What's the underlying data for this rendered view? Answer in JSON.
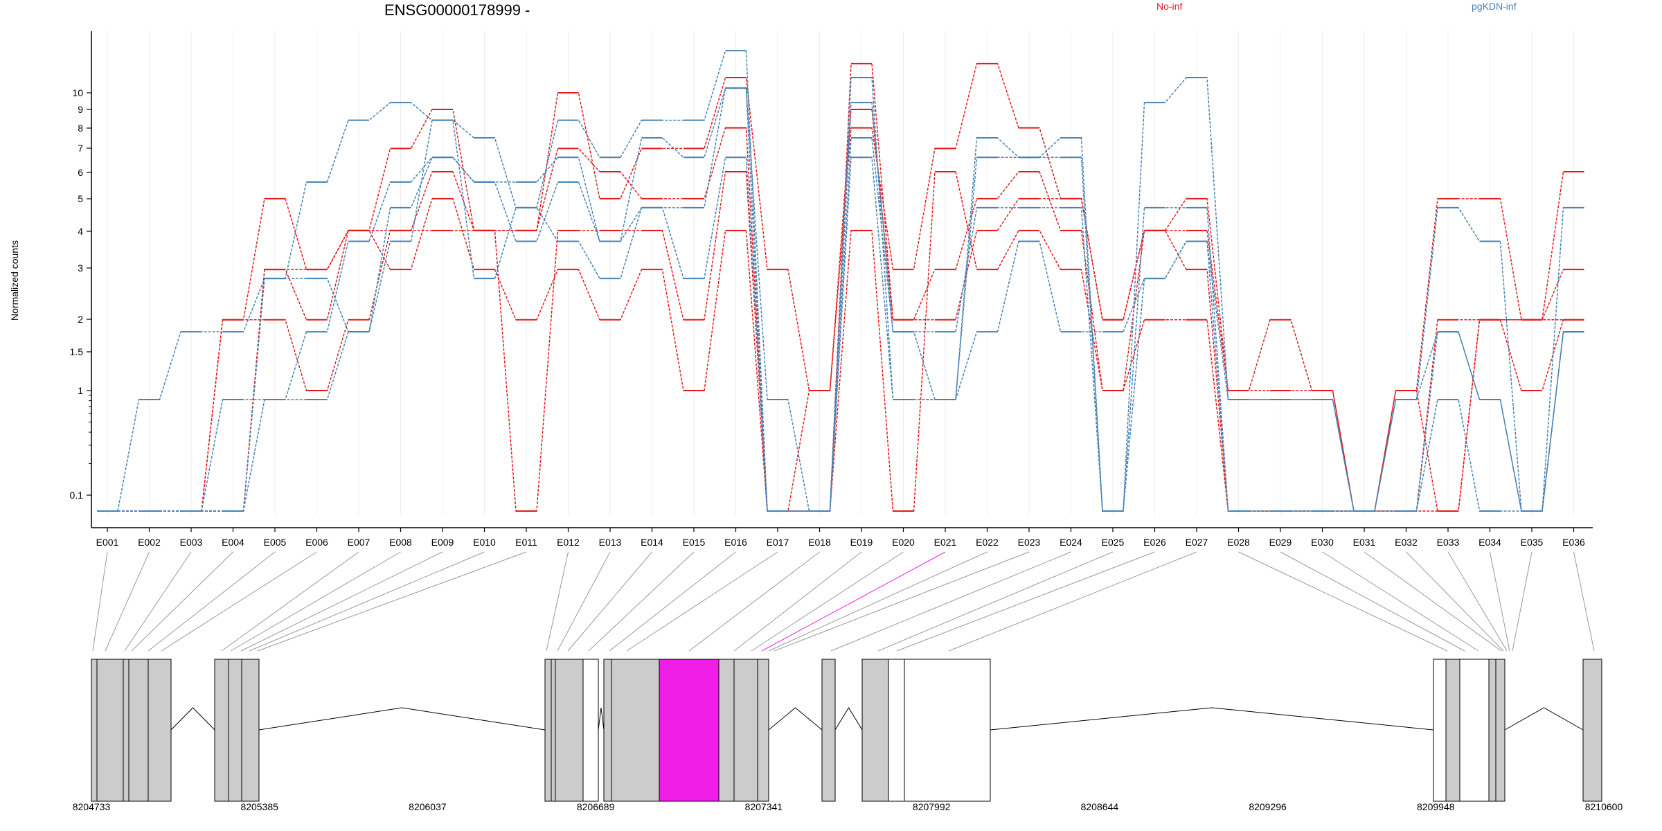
{
  "chart_data": {
    "type": "line",
    "title": "ENSG00000178999 -",
    "ylabel": "Normalized counts",
    "y_scale": "log (offset 0.1 floor)",
    "y_ticks": [
      "0.1",
      "1",
      "1.5",
      "2",
      "3",
      "4",
      "5",
      "6",
      "7",
      "8",
      "9",
      "10"
    ],
    "y_tick_values": [
      0.1,
      1,
      1.5,
      2,
      3,
      4,
      5,
      6,
      7,
      8,
      9,
      10
    ],
    "categories": [
      "E001",
      "E002",
      "E003",
      "E004",
      "E005",
      "E006",
      "E007",
      "E008",
      "E009",
      "E010",
      "E011",
      "E012",
      "E013",
      "E014",
      "E015",
      "E016",
      "E017",
      "E018",
      "E019",
      "E020",
      "E021",
      "E022",
      "E023",
      "E024",
      "E025",
      "E026",
      "E027",
      "E028",
      "E029",
      "E030",
      "E031",
      "E032",
      "E033",
      "E034",
      "E035",
      "E036"
    ],
    "legend": [
      {
        "label": "No-inf",
        "color": "#e41a1c"
      },
      {
        "label": "pgKDN-inf",
        "color": "#4682b4"
      }
    ],
    "series": [
      {
        "group": "No-inf",
        "color": "#e41a1c",
        "values": [
          0,
          0,
          0,
          2,
          5,
          3,
          4,
          7,
          9,
          4,
          4,
          10,
          5,
          7,
          7,
          11,
          3,
          1,
          8,
          3,
          7,
          12,
          8,
          5,
          2,
          4,
          5,
          1,
          1,
          1,
          0,
          1,
          5,
          5,
          2,
          6
        ]
      },
      {
        "group": "No-inf",
        "color": "#e41a1c",
        "values": [
          0,
          0,
          0,
          2,
          2,
          1,
          2,
          4,
          6,
          4,
          4,
          7,
          6,
          5,
          5,
          8,
          0,
          1,
          9,
          2,
          3,
          5,
          6,
          4,
          1,
          4,
          4,
          1,
          2,
          1,
          0,
          1,
          0,
          2,
          2,
          3
        ]
      },
      {
        "group": "No-inf",
        "color": "#e41a1c",
        "values": [
          0,
          0,
          0,
          0,
          3,
          2,
          4,
          3,
          5,
          3,
          2,
          3,
          2,
          3,
          1,
          4,
          0,
          0,
          4,
          0,
          6,
          3,
          4,
          3,
          1,
          2,
          2,
          0,
          0,
          0,
          0,
          0,
          0,
          2,
          1,
          2
        ]
      },
      {
        "group": "No-inf",
        "color": "#e41a1c",
        "values": [
          0,
          0,
          0,
          0,
          3,
          3,
          4,
          4,
          4,
          4,
          0,
          4,
          4,
          4,
          2,
          6,
          0,
          0,
          12,
          2,
          2,
          4,
          5,
          5,
          2,
          4,
          3,
          0,
          0,
          0,
          0,
          0,
          2,
          2,
          2,
          2
        ]
      },
      {
        "group": "pgKDN-inf",
        "color": "#4682b4",
        "values": [
          0,
          0.9,
          1.8,
          1.8,
          2.8,
          5.6,
          8.4,
          9.4,
          8.4,
          7.5,
          4.7,
          8.4,
          6.6,
          8.4,
          8.4,
          13,
          0,
          0,
          11,
          0.9,
          0.9,
          7.5,
          6.6,
          7.5,
          0,
          9.4,
          11,
          0.9,
          0.9,
          0.9,
          0,
          0.9,
          4.7,
          3.7,
          0,
          4.7
        ]
      },
      {
        "group": "pgKDN-inf",
        "color": "#4682b4",
        "values": [
          0,
          0,
          0,
          0.9,
          0.9,
          1.8,
          3.7,
          5.6,
          6.6,
          5.6,
          5.6,
          6.6,
          3.7,
          7.5,
          6.6,
          10.3,
          0.9,
          0,
          9.4,
          1.8,
          0.9,
          6.6,
          6.6,
          6.6,
          0,
          4.7,
          4.7,
          0,
          0,
          0,
          0,
          0,
          1.8,
          0.9,
          0,
          1.8
        ]
      },
      {
        "group": "pgKDN-inf",
        "color": "#4682b4",
        "values": [
          0,
          0,
          0,
          0,
          2.8,
          2.8,
          1.8,
          4.7,
          6.6,
          5.6,
          3.7,
          5.6,
          3.7,
          4.7,
          4.7,
          10.3,
          0,
          0,
          7.5,
          1.8,
          1.8,
          4.7,
          4.7,
          4.7,
          0,
          2.8,
          3.7,
          0.9,
          0.9,
          0.9,
          0,
          0.9,
          1.8,
          0.9,
          0,
          1.8
        ]
      },
      {
        "group": "pgKDN-inf",
        "color": "#4682b4",
        "values": [
          0,
          0,
          0,
          0,
          0.9,
          0.9,
          1.8,
          3.7,
          8.4,
          2.8,
          4.7,
          3.7,
          2.8,
          4.7,
          2.8,
          6.6,
          0,
          0,
          6.6,
          0.9,
          0.9,
          1.8,
          3.7,
          1.8,
          1.8,
          2.8,
          3.7,
          0,
          0,
          0,
          0,
          0,
          0.9,
          0,
          0,
          1.8
        ]
      }
    ],
    "genome_coords": [
      "8204733",
      "8205385",
      "8206037",
      "8206689",
      "8207341",
      "8207992",
      "8208644",
      "8209296",
      "8209948",
      "8210600"
    ],
    "highlighted_exon": "E021",
    "highlight_color": "#f01ee6",
    "grid": "vertical light lines",
    "legend_position": "top-right"
  }
}
